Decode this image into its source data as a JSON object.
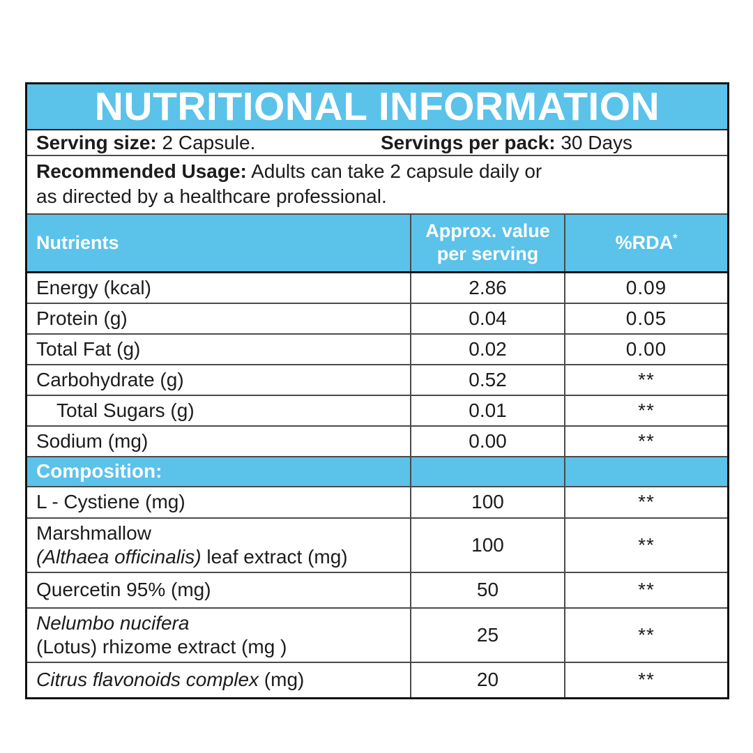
{
  "colors": {
    "accent_blue": "#5BC2EA",
    "outer_border": "#101010",
    "inner_border": "#4a4a4a",
    "text_dark": "#1c1c1c",
    "text_white": "#ffffff",
    "background": "#ffffff"
  },
  "title": "NUTRITIONAL INFORMATION",
  "serving_row": {
    "size_label": "Serving size:",
    "size_value": "2 Capsule.",
    "pack_label": "Servings per pack:",
    "pack_value": "30 Days"
  },
  "usage_row": {
    "label": "Recommended Usage:",
    "line1": "Adults can take 2 capsule daily or",
    "line2": "as directed by a healthcare professional."
  },
  "table": {
    "header": {
      "nutrients": "Nutrients",
      "approx_line1": "Approx. value",
      "approx_line2": "per serving",
      "rda": "%RDA",
      "rda_sup": "*"
    },
    "nutrient_rows": [
      {
        "label": "Energy (kcal)",
        "value": "2.86",
        "rda": "0.09"
      },
      {
        "label": "Protein (g)",
        "value": "0.04",
        "rda": "0.05"
      },
      {
        "label": "Total Fat (g)",
        "value": "0.02",
        "rda": "0.00"
      },
      {
        "label": "Carbohydrate (g)",
        "value": "0.52",
        "rda": "**"
      },
      {
        "label": "Total Sugars (g)",
        "value": "0.01",
        "rda": "**"
      },
      {
        "label": "Sodium (mg)",
        "value": "0.00",
        "rda": "**"
      }
    ],
    "composition_header": "Composition:",
    "composition_rows": [
      {
        "line1": "L - Cystiene (mg)",
        "value": "100",
        "rda": "**"
      },
      {
        "line1": "Marshmallow",
        "line2_italic": "(Althaea officinalis)",
        "line2_rest": " leaf extract (mg)",
        "value": "100",
        "rda": "**"
      },
      {
        "line1": "Quercetin 95% (mg)",
        "value": "50",
        "rda": "**"
      },
      {
        "line1_italic": "Nelumbo nucifera",
        "line2": "(Lotus) rhizome extract (mg )",
        "value": "25",
        "rda": "**"
      },
      {
        "line1_italic": "Citrus flavonoids complex",
        "line1_rest": " (mg)",
        "value": "20",
        "rda": "**"
      }
    ]
  }
}
